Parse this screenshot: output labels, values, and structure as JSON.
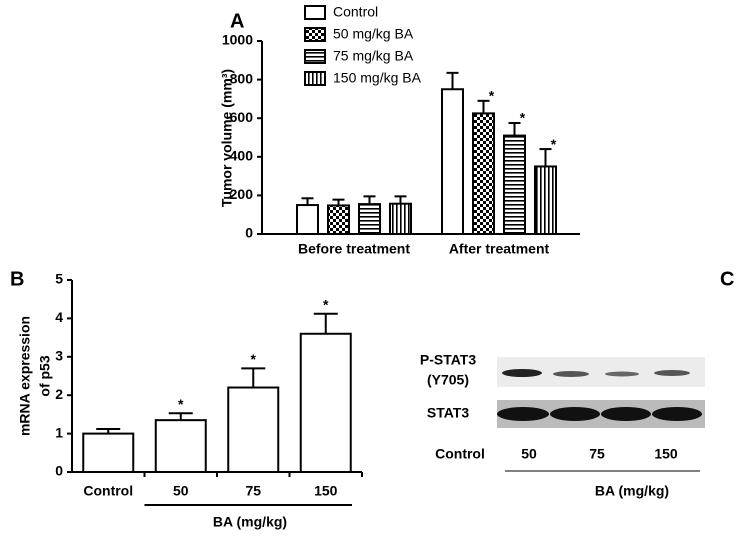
{
  "chart_data": [
    {
      "type": "bar",
      "panel_label": "A",
      "y_label": "Tumor volume (mm³)",
      "categories": [
        "Before treatment",
        "After treatment"
      ],
      "series": [
        {
          "name": "Control",
          "color": "#ffffff",
          "pattern": "none",
          "values": [
            150,
            750
          ],
          "errors": [
            35,
            85
          ],
          "significance": [
            null,
            null
          ]
        },
        {
          "name": "50 mg/kg BA",
          "color": "#ffffff",
          "pattern": "checker",
          "values": [
            148,
            625
          ],
          "errors": [
            30,
            65
          ],
          "significance": [
            null,
            "*"
          ]
        },
        {
          "name": "75 mg/kg BA",
          "color": "#ffffff",
          "pattern": "hstripe",
          "values": [
            155,
            510
          ],
          "errors": [
            40,
            65
          ],
          "significance": [
            null,
            "*"
          ]
        },
        {
          "name": "150 mg/kg BA",
          "color": "#ffffff",
          "pattern": "vstripe",
          "values": [
            157,
            350
          ],
          "errors": [
            38,
            90
          ],
          "significance": [
            null,
            "*"
          ]
        }
      ],
      "ylim": [
        0,
        1000
      ],
      "yticks": [
        0,
        200,
        400,
        600,
        800,
        1000
      ]
    },
    {
      "type": "bar",
      "panel_label": "B",
      "y_label": [
        "mRNA expression",
        "of p53"
      ],
      "x_label": "BA (mg/kg)",
      "categories": [
        "Control",
        "50",
        "75",
        "150"
      ],
      "values": [
        1.0,
        1.35,
        2.2,
        3.6
      ],
      "errors": [
        0.12,
        0.18,
        0.5,
        0.52
      ],
      "significance": [
        null,
        "*",
        "*",
        "*"
      ],
      "color": "#ffffff",
      "ylim": [
        0,
        5
      ],
      "yticks": [
        0,
        1,
        2,
        3,
        4,
        5
      ]
    }
  ],
  "blot": {
    "panel_label": "C",
    "rows": [
      "P-STAT3",
      "(Y705)",
      "STAT3"
    ],
    "lanes": [
      "Control",
      "50",
      "75",
      "150"
    ],
    "group_label": "BA (mg/kg)"
  }
}
